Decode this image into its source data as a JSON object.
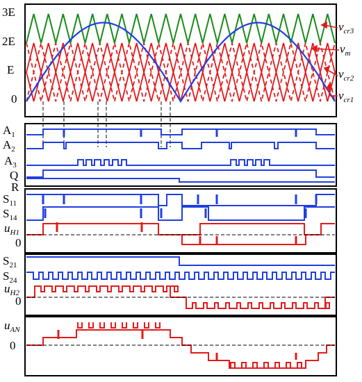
{
  "colors": {
    "carrier_top": "#1a8a1a",
    "carrier_mid": "#e21b1b",
    "modulating": "#1f3fe0",
    "logic": "#1f3fe0",
    "output": "#e21b1b",
    "axis": "#000000"
  },
  "panel1": {
    "y_ticks": [
      "3E",
      "2E",
      "E",
      "0"
    ],
    "carrier_periods": 21,
    "modulation_periods": 2,
    "legend": [
      {
        "id": "cr3",
        "main": "v",
        "sub": "cr3"
      },
      {
        "id": "m",
        "main": "v",
        "sub": "m"
      },
      {
        "id": "cr2",
        "main": "v",
        "sub": "cr2"
      },
      {
        "id": "cr1",
        "main": "v",
        "sub": "cr1"
      }
    ]
  },
  "panel2": {
    "signals": [
      {
        "id": "a1",
        "main": "A",
        "sub": "1"
      },
      {
        "id": "a2",
        "main": "A",
        "sub": "2"
      },
      {
        "id": "a3",
        "main": "A",
        "sub": "3"
      },
      {
        "id": "q",
        "main": "Q",
        "sub": ""
      },
      {
        "id": "r",
        "main": "R",
        "sub": ""
      }
    ]
  },
  "panel3": {
    "signals": [
      {
        "id": "s11",
        "main": "S",
        "sub": "11"
      },
      {
        "id": "s14",
        "main": "S",
        "sub": "14"
      },
      {
        "id": "uh1",
        "main": "u",
        "sub": "H1"
      },
      {
        "id": "zero",
        "main": "0",
        "sub": ""
      }
    ]
  },
  "panel4": {
    "signals": [
      {
        "id": "s21",
        "main": "S",
        "sub": "21"
      },
      {
        "id": "s24",
        "main": "S",
        "sub": "24"
      },
      {
        "id": "uh2",
        "main": "u",
        "sub": "H2"
      },
      {
        "id": "zero",
        "main": "0",
        "sub": ""
      }
    ]
  },
  "panel5": {
    "signals": [
      {
        "id": "uan",
        "main": "u",
        "sub": "AN"
      },
      {
        "id": "zero",
        "main": "0",
        "sub": ""
      }
    ]
  }
}
